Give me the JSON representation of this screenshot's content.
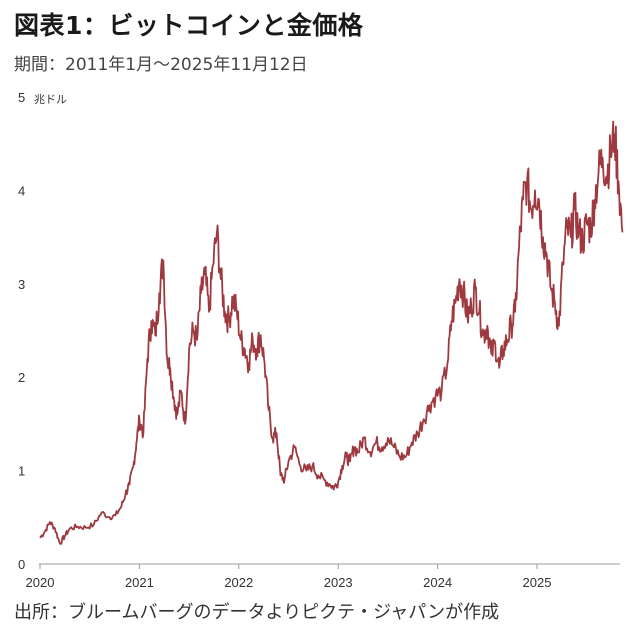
{
  "title": "図表1：ビットコインと金価格",
  "subtitle": "期間：2011年1月～2025年11月12日",
  "source": "出所：ブルームバーグのデータよりピクテ・ジャパンが作成",
  "colors": {
    "line": "#9e3a3f",
    "axis": "#999999",
    "text": "#333333"
  },
  "chart_data": {
    "type": "line",
    "title": "図表1：ビットコインと金価格",
    "ylabel_unit": "兆ドル",
    "ylim": [
      0,
      5
    ],
    "xlim": [
      2020.0,
      2025.83
    ],
    "y_ticks": [
      "0",
      "1",
      "2",
      "3",
      "4",
      "5"
    ],
    "x_ticks": [
      "2020",
      "2021",
      "2022",
      "2023",
      "2024",
      "2025"
    ],
    "grid": false,
    "series": [
      {
        "x": [
          2020.0,
          2020.05,
          2020.1,
          2020.15,
          2020.2,
          2020.25,
          2020.3,
          2020.38,
          2020.46,
          2020.54,
          2020.62,
          2020.7,
          2020.76,
          2020.82,
          2020.86,
          2020.9,
          2020.94,
          2020.97,
          2021.0,
          2021.04,
          2021.08,
          2021.12,
          2021.16,
          2021.2,
          2021.24,
          2021.28,
          2021.31,
          2021.35,
          2021.38,
          2021.42,
          2021.46,
          2021.5,
          2021.54,
          2021.58,
          2021.62,
          2021.66,
          2021.7,
          2021.74,
          2021.78,
          2021.82,
          2021.86,
          2021.9,
          2021.94,
          2021.98,
          2022.02,
          2022.06,
          2022.1,
          2022.14,
          2022.18,
          2022.22,
          2022.26,
          2022.3,
          2022.34,
          2022.38,
          2022.42,
          2022.46,
          2022.5,
          2022.56,
          2022.62,
          2022.68,
          2022.74,
          2022.8,
          2022.86,
          2022.92,
          2022.96,
          2023.0,
          2023.04,
          2023.08,
          2023.12,
          2023.16,
          2023.2,
          2023.26,
          2023.32,
          2023.38,
          2023.44,
          2023.5,
          2023.56,
          2023.62,
          2023.68,
          2023.74,
          2023.8,
          2023.86,
          2023.92,
          2023.98,
          2024.04,
          2024.1,
          2024.14,
          2024.18,
          2024.22,
          2024.26,
          2024.3,
          2024.34,
          2024.38,
          2024.42,
          2024.46,
          2024.5,
          2024.54,
          2024.58,
          2024.62,
          2024.66,
          2024.7,
          2024.74,
          2024.78,
          2024.82,
          2024.86,
          2024.9,
          2024.94,
          2024.98,
          2025.02,
          2025.06,
          2025.1,
          2025.14,
          2025.18,
          2025.22,
          2025.26,
          2025.3,
          2025.34,
          2025.38,
          2025.42,
          2025.46,
          2025.5,
          2025.54,
          2025.58,
          2025.62,
          2025.66,
          2025.7,
          2025.74,
          2025.78,
          2025.82,
          2025.86
        ],
        "values": [
          0.28,
          0.35,
          0.45,
          0.38,
          0.22,
          0.3,
          0.38,
          0.4,
          0.39,
          0.42,
          0.55,
          0.5,
          0.52,
          0.62,
          0.75,
          0.85,
          1.05,
          1.3,
          1.55,
          1.4,
          2.2,
          2.6,
          2.45,
          2.9,
          3.25,
          2.2,
          2.1,
          1.75,
          1.6,
          1.85,
          1.5,
          2.3,
          2.5,
          2.4,
          2.9,
          3.1,
          2.7,
          3.2,
          3.55,
          3.05,
          2.7,
          2.6,
          2.85,
          2.7,
          2.4,
          2.3,
          2.15,
          2.4,
          2.3,
          2.45,
          2.15,
          1.65,
          1.35,
          1.4,
          0.95,
          0.9,
          1.1,
          1.25,
          1.05,
          1.0,
          1.05,
          0.95,
          0.9,
          0.85,
          0.82,
          0.88,
          1.05,
          1.15,
          1.1,
          1.25,
          1.2,
          1.35,
          1.2,
          1.3,
          1.25,
          1.35,
          1.25,
          1.15,
          1.15,
          1.3,
          1.4,
          1.55,
          1.7,
          1.8,
          1.85,
          2.15,
          2.6,
          2.8,
          3.05,
          2.9,
          2.65,
          2.75,
          2.95,
          2.7,
          2.45,
          2.55,
          2.25,
          2.35,
          2.1,
          2.3,
          2.4,
          2.55,
          2.7,
          3.4,
          3.9,
          4.1,
          3.8,
          4.0,
          3.9,
          3.5,
          3.3,
          2.95,
          2.8,
          2.55,
          3.2,
          3.6,
          3.5,
          3.8,
          3.55,
          3.45,
          3.65,
          3.6,
          3.9,
          4.2,
          4.35,
          4.15,
          4.4,
          4.6,
          4.1,
          3.55
        ]
      }
    ]
  }
}
